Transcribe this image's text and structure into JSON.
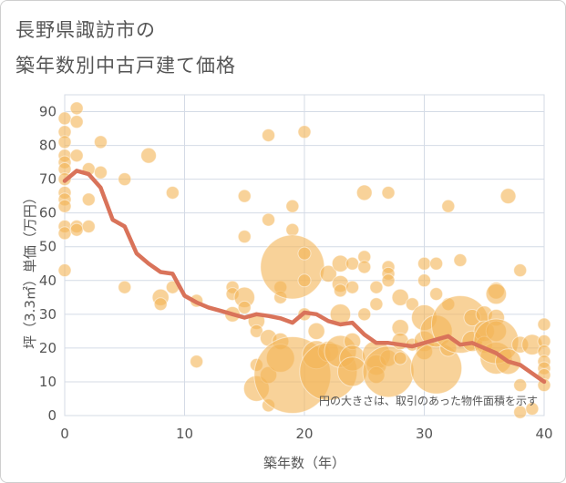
{
  "title_lines": [
    "長野県諏訪市の",
    "築年数別中古戸建て価格"
  ],
  "chart_data": {
    "type": "scatter",
    "xlabel": "築年数（年）",
    "ylabel": "坪（3.3㎡）単価（万円）",
    "xlim": [
      0,
      40
    ],
    "ylim": [
      0,
      95
    ],
    "x_ticks": [
      "0",
      "10",
      "20",
      "30",
      "40"
    ],
    "y_ticks": [
      "0",
      "10",
      "20",
      "30",
      "40",
      "50",
      "60",
      "70",
      "80",
      "90"
    ],
    "grid": true,
    "note": "円の大きさは、取引のあった物件面積を示す",
    "colors": {
      "bubble": "#f3b455",
      "line": "#d9735a",
      "grid": "#d4dbe6",
      "axis_text": "#555555"
    },
    "points": [
      {
        "x": 0,
        "y": 88,
        "s": 1
      },
      {
        "x": 0,
        "y": 84,
        "s": 1
      },
      {
        "x": 0,
        "y": 81,
        "s": 1
      },
      {
        "x": 0,
        "y": 77,
        "s": 1
      },
      {
        "x": 0,
        "y": 75,
        "s": 1
      },
      {
        "x": 0,
        "y": 73,
        "s": 1
      },
      {
        "x": 0,
        "y": 70,
        "s": 1
      },
      {
        "x": 0,
        "y": 66,
        "s": 1
      },
      {
        "x": 0,
        "y": 64,
        "s": 1
      },
      {
        "x": 0,
        "y": 62,
        "s": 1
      },
      {
        "x": 0,
        "y": 56,
        "s": 1
      },
      {
        "x": 0,
        "y": 54,
        "s": 1
      },
      {
        "x": 0,
        "y": 43,
        "s": 1
      },
      {
        "x": 1,
        "y": 91,
        "s": 1
      },
      {
        "x": 1,
        "y": 87,
        "s": 1
      },
      {
        "x": 1,
        "y": 77,
        "s": 1
      },
      {
        "x": 1,
        "y": 56,
        "s": 1
      },
      {
        "x": 1,
        "y": 55,
        "s": 1
      },
      {
        "x": 2,
        "y": 73,
        "s": 1
      },
      {
        "x": 2,
        "y": 64,
        "s": 1
      },
      {
        "x": 2,
        "y": 56,
        "s": 1
      },
      {
        "x": 3,
        "y": 81,
        "s": 1
      },
      {
        "x": 3,
        "y": 72,
        "s": 1
      },
      {
        "x": 5,
        "y": 70,
        "s": 1
      },
      {
        "x": 5,
        "y": 38,
        "s": 1
      },
      {
        "x": 7,
        "y": 77,
        "s": 1.2
      },
      {
        "x": 8,
        "y": 35,
        "s": 1.3
      },
      {
        "x": 8,
        "y": 33,
        "s": 1
      },
      {
        "x": 9,
        "y": 66,
        "s": 1
      },
      {
        "x": 9,
        "y": 38,
        "s": 1
      },
      {
        "x": 11,
        "y": 34,
        "s": 1
      },
      {
        "x": 11,
        "y": 16,
        "s": 1
      },
      {
        "x": 15,
        "y": 65,
        "s": 1
      },
      {
        "x": 15,
        "y": 53,
        "s": 1
      },
      {
        "x": 14,
        "y": 38,
        "s": 1
      },
      {
        "x": 14,
        "y": 36,
        "s": 1
      },
      {
        "x": 14,
        "y": 30,
        "s": 1.2
      },
      {
        "x": 15,
        "y": 35,
        "s": 1.6
      },
      {
        "x": 15,
        "y": 32,
        "s": 1
      },
      {
        "x": 16,
        "y": 28,
        "s": 1.3
      },
      {
        "x": 16,
        "y": 25,
        "s": 1
      },
      {
        "x": 16,
        "y": 15,
        "s": 1
      },
      {
        "x": 16,
        "y": 8,
        "s": 2
      },
      {
        "x": 17,
        "y": 83,
        "s": 1
      },
      {
        "x": 17,
        "y": 58,
        "s": 1
      },
      {
        "x": 17,
        "y": 23,
        "s": 1.3
      },
      {
        "x": 17,
        "y": 12,
        "s": 1.3
      },
      {
        "x": 17,
        "y": 3,
        "s": 1
      },
      {
        "x": 18,
        "y": 38,
        "s": 1
      },
      {
        "x": 18,
        "y": 35,
        "s": 1
      },
      {
        "x": 18,
        "y": 22,
        "s": 1.3
      },
      {
        "x": 18,
        "y": 17,
        "s": 2.2
      },
      {
        "x": 19,
        "y": 62,
        "s": 1
      },
      {
        "x": 19,
        "y": 55,
        "s": 1
      },
      {
        "x": 19,
        "y": 44,
        "s": 5
      },
      {
        "x": 19,
        "y": 12,
        "s": 6
      },
      {
        "x": 20,
        "y": 84,
        "s": 1
      },
      {
        "x": 20,
        "y": 48,
        "s": 1
      },
      {
        "x": 20,
        "y": 40,
        "s": 1
      },
      {
        "x": 20,
        "y": 30,
        "s": 1
      },
      {
        "x": 21,
        "y": 25,
        "s": 1.3
      },
      {
        "x": 21,
        "y": 18,
        "s": 2.2
      },
      {
        "x": 22,
        "y": 42,
        "s": 1.3
      },
      {
        "x": 22,
        "y": 19,
        "s": 1.6
      },
      {
        "x": 22,
        "y": 13,
        "s": 4.5
      },
      {
        "x": 23,
        "y": 45,
        "s": 1.3
      },
      {
        "x": 23,
        "y": 39,
        "s": 1.3
      },
      {
        "x": 23,
        "y": 37,
        "s": 1
      },
      {
        "x": 23,
        "y": 30,
        "s": 1.6
      },
      {
        "x": 23,
        "y": 19,
        "s": 2.5
      },
      {
        "x": 24,
        "y": 45,
        "s": 1
      },
      {
        "x": 24,
        "y": 38,
        "s": 1
      },
      {
        "x": 24,
        "y": 22,
        "s": 1.3
      },
      {
        "x": 24,
        "y": 17,
        "s": 2
      },
      {
        "x": 24,
        "y": 13,
        "s": 2.3
      },
      {
        "x": 25,
        "y": 66,
        "s": 1.2
      },
      {
        "x": 25,
        "y": 47,
        "s": 1
      },
      {
        "x": 25,
        "y": 44,
        "s": 1
      },
      {
        "x": 25,
        "y": 30,
        "s": 1
      },
      {
        "x": 26,
        "y": 38,
        "s": 1
      },
      {
        "x": 26,
        "y": 33,
        "s": 1
      },
      {
        "x": 26,
        "y": 18,
        "s": 2.2
      },
      {
        "x": 26,
        "y": 15,
        "s": 1.6
      },
      {
        "x": 26,
        "y": 12,
        "s": 1.3
      },
      {
        "x": 27,
        "y": 66,
        "s": 1
      },
      {
        "x": 27,
        "y": 44,
        "s": 1
      },
      {
        "x": 27,
        "y": 42,
        "s": 1
      },
      {
        "x": 27,
        "y": 40,
        "s": 1
      },
      {
        "x": 27,
        "y": 17,
        "s": 1.3
      },
      {
        "x": 27,
        "y": 13,
        "s": 4
      },
      {
        "x": 28,
        "y": 35,
        "s": 1.3
      },
      {
        "x": 28,
        "y": 26,
        "s": 1.3
      },
      {
        "x": 28,
        "y": 22,
        "s": 1.3
      },
      {
        "x": 28,
        "y": 17,
        "s": 1
      },
      {
        "x": 29,
        "y": 33,
        "s": 1
      },
      {
        "x": 29,
        "y": 21,
        "s": 1
      },
      {
        "x": 30,
        "y": 45,
        "s": 1
      },
      {
        "x": 30,
        "y": 40,
        "s": 1
      },
      {
        "x": 30,
        "y": 29,
        "s": 2
      },
      {
        "x": 30,
        "y": 22,
        "s": 1.6
      },
      {
        "x": 30,
        "y": 19,
        "s": 1.3
      },
      {
        "x": 31,
        "y": 45,
        "s": 1
      },
      {
        "x": 31,
        "y": 36,
        "s": 1
      },
      {
        "x": 31,
        "y": 14,
        "s": 4
      },
      {
        "x": 31,
        "y": 25,
        "s": 2.5
      },
      {
        "x": 32,
        "y": 62,
        "s": 1
      },
      {
        "x": 32,
        "y": 33,
        "s": 1
      },
      {
        "x": 32,
        "y": 20,
        "s": 1.3
      },
      {
        "x": 33,
        "y": 46,
        "s": 1
      },
      {
        "x": 33,
        "y": 27,
        "s": 4.5
      },
      {
        "x": 34,
        "y": 29,
        "s": 1.3
      },
      {
        "x": 34,
        "y": 22,
        "s": 1.6
      },
      {
        "x": 35,
        "y": 30,
        "s": 1.3
      },
      {
        "x": 35,
        "y": 25,
        "s": 1.6
      },
      {
        "x": 35,
        "y": 21,
        "s": 1.3
      },
      {
        "x": 36,
        "y": 37,
        "s": 1.3
      },
      {
        "x": 36,
        "y": 36,
        "s": 1.6
      },
      {
        "x": 36,
        "y": 29,
        "s": 1.3
      },
      {
        "x": 36,
        "y": 25,
        "s": 1.6
      },
      {
        "x": 36,
        "y": 17,
        "s": 2.5
      },
      {
        "x": 36,
        "y": 22,
        "s": 3.5
      },
      {
        "x": 37,
        "y": 65,
        "s": 1.2
      },
      {
        "x": 37,
        "y": 16,
        "s": 2
      },
      {
        "x": 38,
        "y": 43,
        "s": 1
      },
      {
        "x": 38,
        "y": 21,
        "s": 1.3
      },
      {
        "x": 38,
        "y": 9,
        "s": 1
      },
      {
        "x": 38,
        "y": 1,
        "s": 1
      },
      {
        "x": 39,
        "y": 21,
        "s": 1.6
      },
      {
        "x": 39,
        "y": 2,
        "s": 1
      },
      {
        "x": 40,
        "y": 27,
        "s": 1
      },
      {
        "x": 40,
        "y": 22,
        "s": 1
      },
      {
        "x": 40,
        "y": 19,
        "s": 1
      },
      {
        "x": 40,
        "y": 16,
        "s": 1
      },
      {
        "x": 40,
        "y": 14,
        "s": 1
      },
      {
        "x": 40,
        "y": 12,
        "s": 1
      },
      {
        "x": 40,
        "y": 9,
        "s": 1
      }
    ],
    "trend": [
      [
        0,
        69.5
      ],
      [
        1,
        72.5
      ],
      [
        2,
        71.5
      ],
      [
        3,
        67.5
      ],
      [
        4,
        58
      ],
      [
        5,
        56
      ],
      [
        6,
        48
      ],
      [
        7,
        45
      ],
      [
        8,
        42.5
      ],
      [
        9,
        42
      ],
      [
        10,
        35.5
      ],
      [
        11,
        33.5
      ],
      [
        12,
        32
      ],
      [
        13,
        31
      ],
      [
        14,
        30
      ],
      [
        15,
        29
      ],
      [
        16,
        30
      ],
      [
        17,
        29.5
      ],
      [
        18,
        28.8
      ],
      [
        19,
        27.5
      ],
      [
        20,
        30.5
      ],
      [
        21,
        30
      ],
      [
        22,
        28
      ],
      [
        23,
        27
      ],
      [
        24,
        27.5
      ],
      [
        25,
        24
      ],
      [
        26,
        21.5
      ],
      [
        27,
        21.5
      ],
      [
        28,
        21
      ],
      [
        29,
        20.5
      ],
      [
        30,
        21.5
      ],
      [
        31,
        22.5
      ],
      [
        32,
        23.5
      ],
      [
        33,
        21
      ],
      [
        34,
        21.5
      ],
      [
        35,
        20
      ],
      [
        36,
        18.5
      ],
      [
        37,
        16
      ],
      [
        38,
        15
      ],
      [
        39,
        12.5
      ],
      [
        40,
        10
      ]
    ]
  }
}
